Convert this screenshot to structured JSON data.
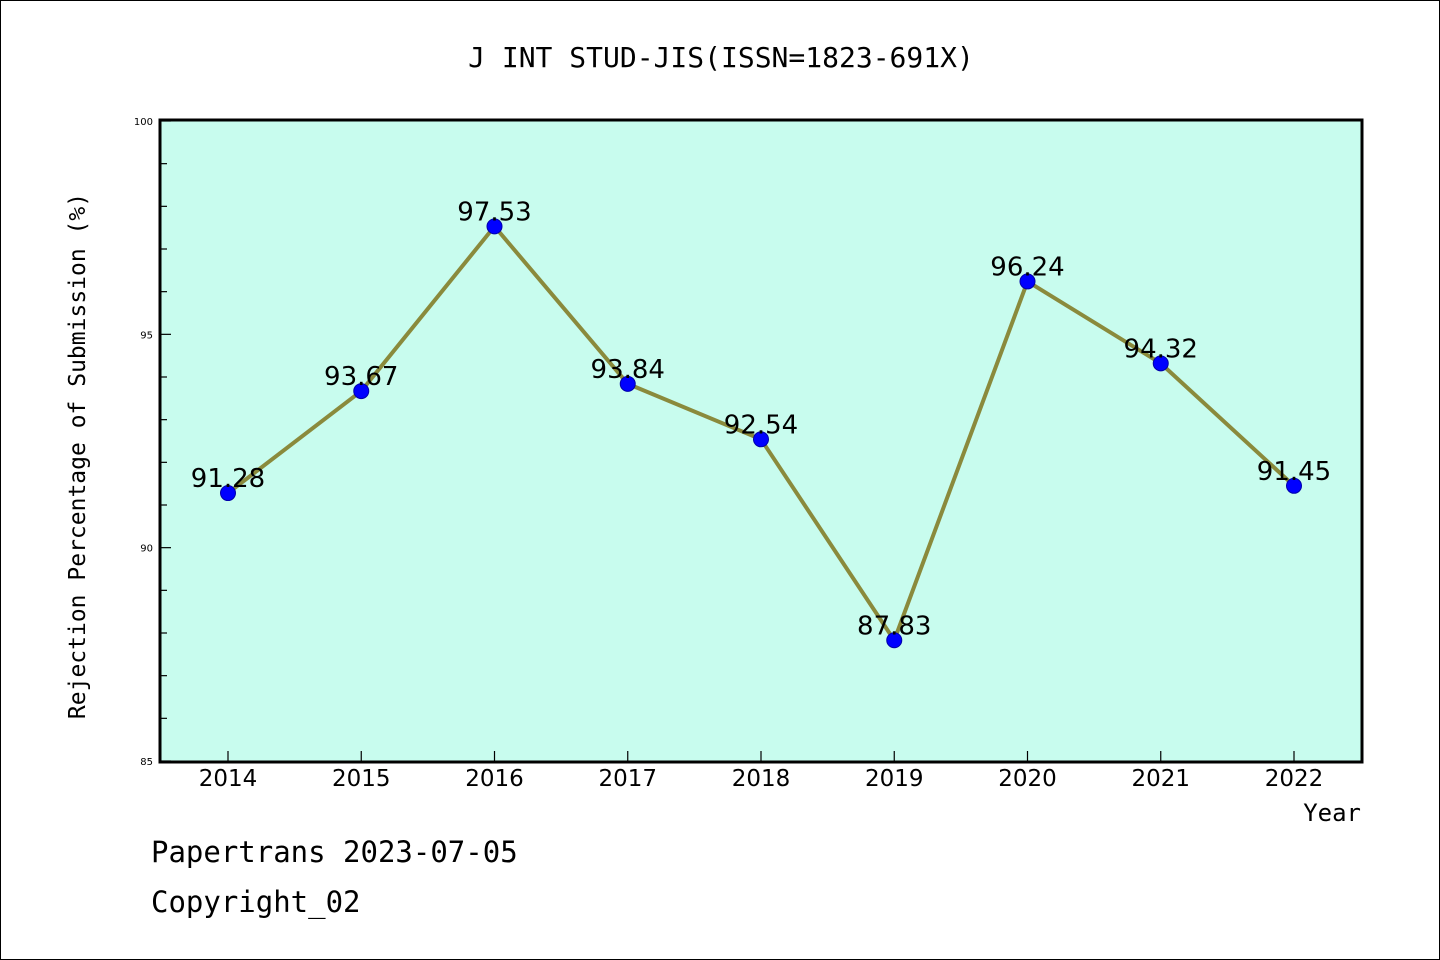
{
  "chart_data": {
    "type": "line",
    "title": "J INT STUD-JIS(ISSN=1823-691X)",
    "xlabel": "Year",
    "ylabel": "Rejection Percentage of Submission (%)",
    "categories": [
      "2014",
      "2015",
      "2016",
      "2017",
      "2018",
      "2019",
      "2020",
      "2021",
      "2022"
    ],
    "values": [
      91.28,
      93.67,
      97.53,
      93.84,
      92.54,
      87.83,
      96.24,
      94.32,
      91.45
    ],
    "data_labels": [
      "91.28",
      "93.67",
      "97.53",
      "93.84",
      "92.54",
      "87.83",
      "96.24",
      "94.32",
      "91.45"
    ],
    "ylim": [
      85,
      100
    ],
    "yticks": [
      85,
      90,
      95,
      100
    ],
    "ytick_labels": [
      "85",
      "90",
      "95",
      "100"
    ],
    "grid": false,
    "legend": "none",
    "colors": {
      "plot_background": "#c8fcee",
      "line": "#8a8a3c",
      "marker": "#0000ff"
    }
  },
  "footer": {
    "line1": "Papertrans 2023-07-05",
    "line2": "Copyright_02"
  }
}
